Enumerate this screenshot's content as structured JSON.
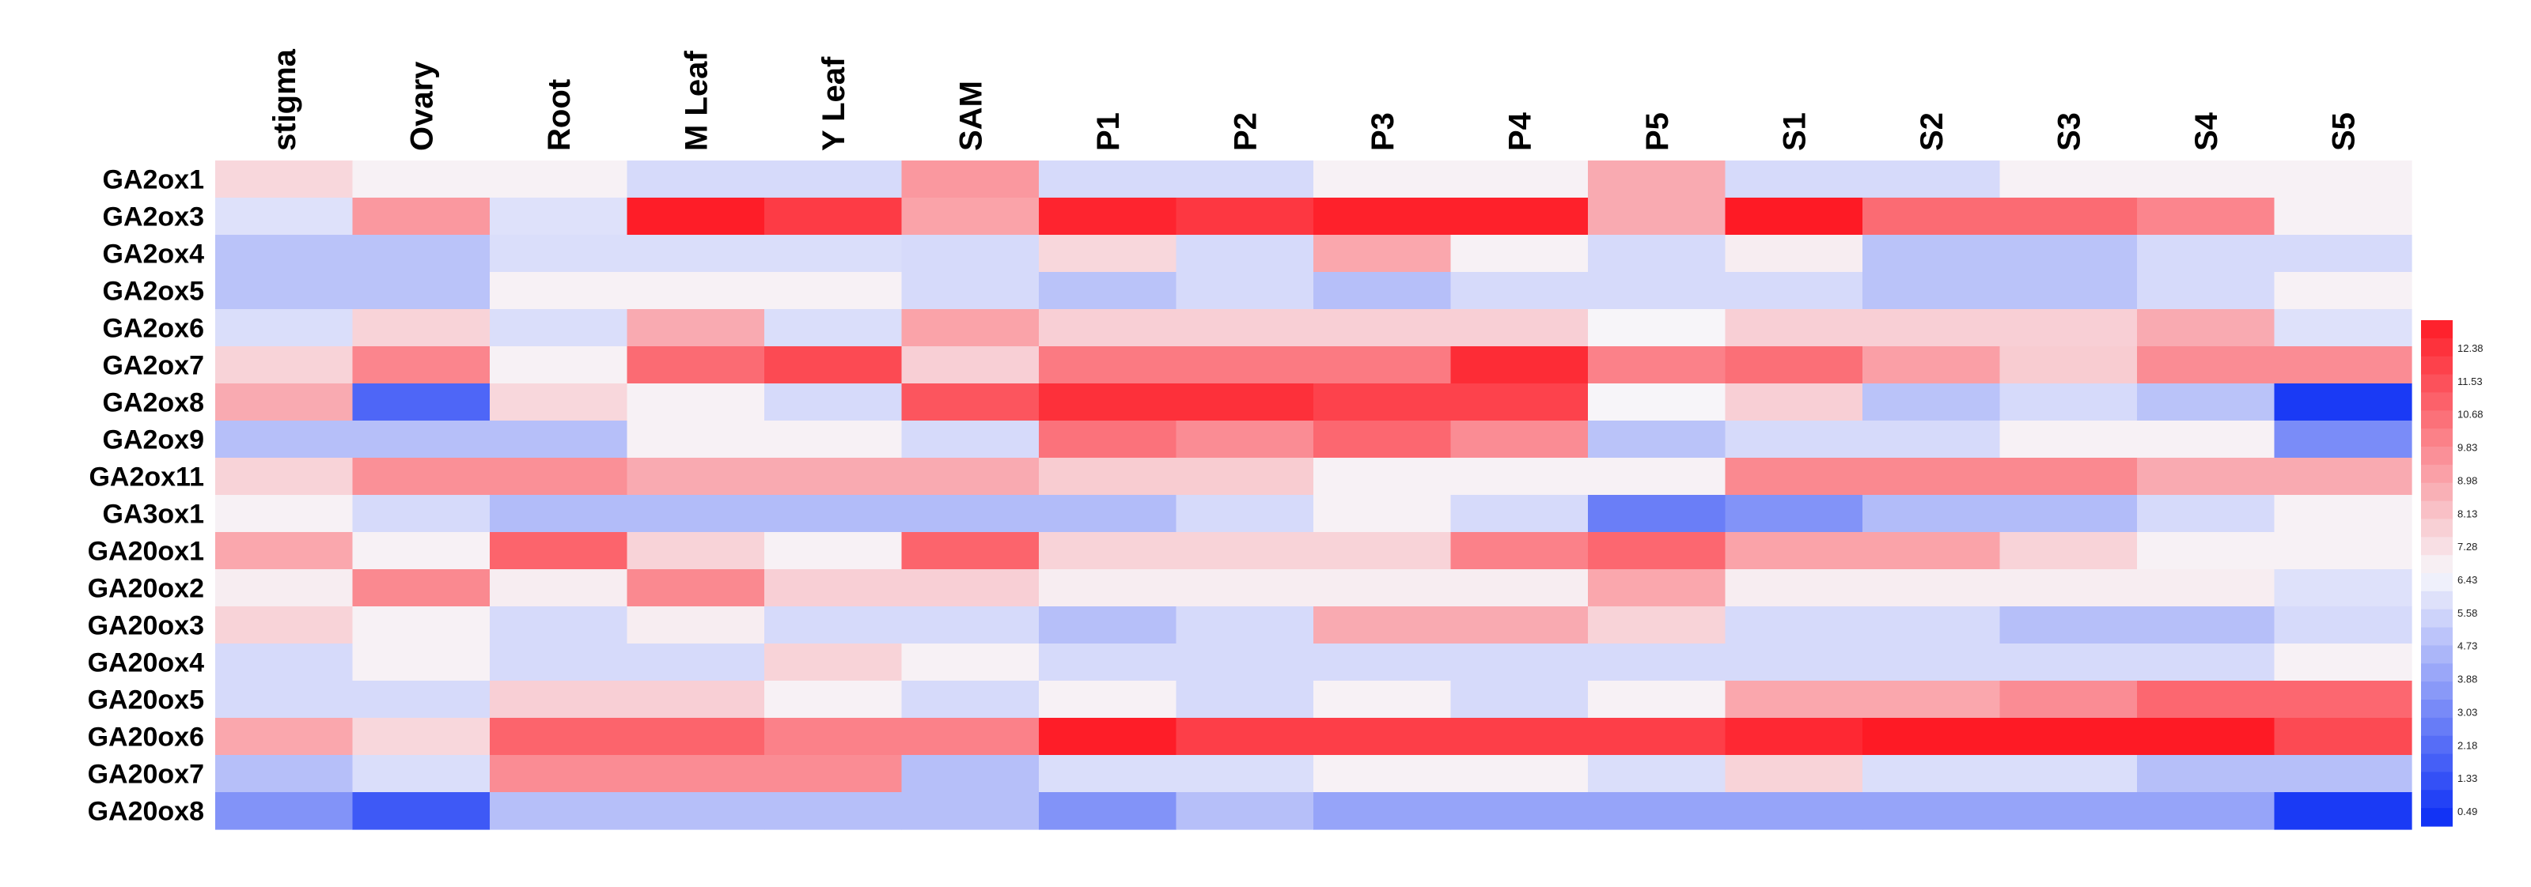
{
  "chart_data": {
    "type": "heatmap",
    "title": "",
    "xlabel": "",
    "ylabel": "",
    "columns": [
      "stigma",
      "Ovary",
      "Root",
      "M Leaf",
      "Y Leaf",
      "SAM",
      "P1",
      "P2",
      "P3",
      "P4",
      "P5",
      "S1",
      "S2",
      "S3",
      "S4",
      "S5"
    ],
    "rows": [
      "GA2ox1",
      "GA2ox3",
      "GA2ox4",
      "GA2ox5",
      "GA2ox6",
      "GA2ox7",
      "GA2ox8",
      "GA2ox9",
      "GA2ox11",
      "GA3ox1",
      "GA20ox1",
      "GA20ox2",
      "GA20ox3",
      "GA20ox4",
      "GA20ox5",
      "GA20ox6",
      "GA20ox7",
      "GA20ox8"
    ],
    "values": [
      [
        7.3,
        6.6,
        6.6,
        5.6,
        5.6,
        9.0,
        5.6,
        5.6,
        6.6,
        6.6,
        8.5,
        5.6,
        5.6,
        6.6,
        6.6,
        6.6
      ],
      [
        5.8,
        9.0,
        5.8,
        12.3,
        11.5,
        8.7,
        12.1,
        11.6,
        12.2,
        12.2,
        8.5,
        12.6,
        10.2,
        10.2,
        9.5,
        6.6
      ],
      [
        4.9,
        4.9,
        5.7,
        5.7,
        5.7,
        5.6,
        7.3,
        5.6,
        8.6,
        6.6,
        5.6,
        6.7,
        4.9,
        4.9,
        5.6,
        5.6
      ],
      [
        4.9,
        4.9,
        6.6,
        6.6,
        6.6,
        5.6,
        4.9,
        5.6,
        4.8,
        5.6,
        5.6,
        5.6,
        4.9,
        4.9,
        5.6,
        6.6
      ],
      [
        5.7,
        7.4,
        5.7,
        8.5,
        5.7,
        8.7,
        7.5,
        7.5,
        7.5,
        7.5,
        6.5,
        7.5,
        7.5,
        7.5,
        8.5,
        5.8
      ],
      [
        7.4,
        9.5,
        6.6,
        10.2,
        11.1,
        7.5,
        9.8,
        9.8,
        9.8,
        11.9,
        9.6,
        10.1,
        8.8,
        7.6,
        9.3,
        9.3
      ],
      [
        8.5,
        2.2,
        7.3,
        6.6,
        5.6,
        10.8,
        11.8,
        11.8,
        11.3,
        11.3,
        6.5,
        7.5,
        4.9,
        5.6,
        4.9,
        0.9
      ],
      [
        4.8,
        4.8,
        4.8,
        6.6,
        6.6,
        5.6,
        10.0,
        9.3,
        10.3,
        9.3,
        4.9,
        5.6,
        5.6,
        6.6,
        6.6,
        3.3
      ],
      [
        7.4,
        9.2,
        9.2,
        8.5,
        8.5,
        8.5,
        7.6,
        7.6,
        6.6,
        6.6,
        6.6,
        9.4,
        9.4,
        9.4,
        8.5,
        8.5
      ],
      [
        6.6,
        5.6,
        4.7,
        4.7,
        4.7,
        4.7,
        4.7,
        5.6,
        6.6,
        5.6,
        2.9,
        3.5,
        4.7,
        4.7,
        5.6,
        6.6
      ],
      [
        8.6,
        6.6,
        10.4,
        7.4,
        6.6,
        10.4,
        7.4,
        7.4,
        7.4,
        9.6,
        10.3,
        8.7,
        8.7,
        7.4,
        6.6,
        6.6
      ],
      [
        6.7,
        9.4,
        6.7,
        9.4,
        7.5,
        7.5,
        6.7,
        6.7,
        6.7,
        6.7,
        8.6,
        6.7,
        6.7,
        6.7,
        6.7,
        5.8
      ],
      [
        7.4,
        6.6,
        5.6,
        6.7,
        5.6,
        5.6,
        4.8,
        5.6,
        8.5,
        8.5,
        7.4,
        5.6,
        5.6,
        4.8,
        4.8,
        5.6
      ],
      [
        5.6,
        6.6,
        5.6,
        5.6,
        7.4,
        6.6,
        5.6,
        5.6,
        5.6,
        5.6,
        5.6,
        5.6,
        5.6,
        5.6,
        5.6,
        6.6
      ],
      [
        5.6,
        5.6,
        7.5,
        7.5,
        6.6,
        5.6,
        6.6,
        5.6,
        6.6,
        5.6,
        6.6,
        8.6,
        8.6,
        9.3,
        10.3,
        10.3
      ],
      [
        8.6,
        7.3,
        10.4,
        10.4,
        9.6,
        9.6,
        12.3,
        11.4,
        11.4,
        11.4,
        11.4,
        12.0,
        12.6,
        12.6,
        12.6,
        11.1
      ],
      [
        4.8,
        5.7,
        9.3,
        9.3,
        9.3,
        4.8,
        5.7,
        5.7,
        6.6,
        6.6,
        5.7,
        7.4,
        5.7,
        5.7,
        4.8,
        4.8
      ],
      [
        3.5,
        1.8,
        4.8,
        4.8,
        4.8,
        4.8,
        3.5,
        4.8,
        4.0,
        4.0,
        4.0,
        4.0,
        4.0,
        4.0,
        4.0,
        0.9
      ]
    ],
    "color_scale": {
      "min": 0.49,
      "max": 12.38,
      "low_color": "#0a2cf5",
      "mid_color": "#f7f7fb",
      "high_color": "#fe1a25"
    },
    "legend": {
      "position": "right",
      "tick_labels": [
        "12.38",
        "11.53",
        "10.68",
        "9.83",
        "8.98",
        "8.13",
        "7.28",
        "6.43",
        "5.58",
        "4.73",
        "3.88",
        "3.03",
        "2.18",
        "1.33",
        "0.49"
      ]
    }
  }
}
